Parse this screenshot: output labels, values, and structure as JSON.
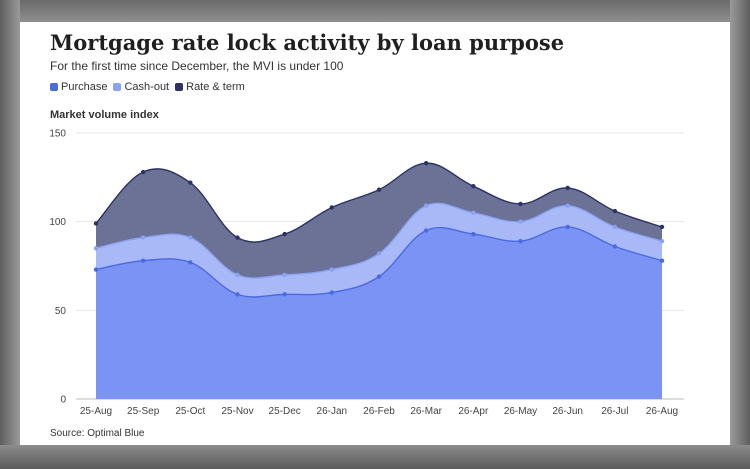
{
  "title": "Mortgage rate lock activity by loan purpose",
  "subtitle": "For the first time since December, the MVI is under 100",
  "source": "Source: Optimal Blue",
  "colors": {
    "purchase_fill": "#7b93f5",
    "purchase_line": "#4a6ae0",
    "cashout_fill": "#a9b9f7",
    "cashout_line": "#8aa2f3",
    "rateterm_fill": "#6c7196",
    "rateterm_line": "#2b3266"
  },
  "chart_data": {
    "type": "area",
    "stacked": false,
    "ylabel": "Market volume index",
    "ylim": [
      0,
      150
    ],
    "yticks": [
      0,
      50,
      100,
      150
    ],
    "grid": true,
    "legend_position": "top-left",
    "categories": [
      "25-Aug",
      "25-Sep",
      "25-Oct",
      "25-Nov",
      "25-Dec",
      "26-Jan",
      "26-Feb",
      "26-Mar",
      "26-Apr",
      "26-May",
      "26-Jun",
      "26-Jul",
      "26-Aug"
    ],
    "series": [
      {
        "name": "Rate & term",
        "values": [
          99,
          128,
          122,
          91,
          93,
          108,
          118,
          133,
          120,
          110,
          119,
          106,
          97
        ]
      },
      {
        "name": "Cash-out",
        "values": [
          85,
          91,
          91,
          70,
          70,
          73,
          82,
          109,
          105,
          100,
          109,
          97,
          89
        ]
      },
      {
        "name": "Purchase",
        "values": [
          73,
          78,
          77,
          59,
          59,
          60,
          69,
          95,
          93,
          89,
          97,
          86,
          78
        ]
      }
    ]
  }
}
